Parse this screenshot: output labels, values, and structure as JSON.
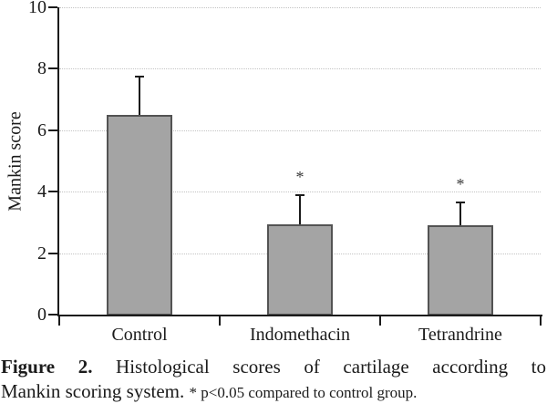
{
  "figure": {
    "caption": {
      "label": "Figure 2.",
      "line1": "Histological scores of cartilage according to",
      "line2": "Mankin scoring system.",
      "note": "* p<0.05 compared to control group."
    }
  },
  "chart_data": {
    "type": "bar",
    "title": "",
    "xlabel": "",
    "ylabel": "Mankin score",
    "ylim": [
      0,
      10
    ],
    "yticks": [
      0,
      2,
      4,
      6,
      8,
      10
    ],
    "grid": "horizontal-dotted",
    "legend": "none",
    "categories": [
      "Control",
      "Indomethacin",
      "Tetrandrine"
    ],
    "values": [
      6.5,
      2.95,
      2.9
    ],
    "upper_errors": [
      1.25,
      0.95,
      0.75
    ],
    "significance": [
      "",
      "*",
      "*"
    ],
    "colors": {
      "bar_fill": "#a4a4a4",
      "bar_border": "#535353",
      "axis": "#1b1b1b",
      "gridline": "#c3c3c3",
      "text": "#1b1b1b"
    }
  }
}
